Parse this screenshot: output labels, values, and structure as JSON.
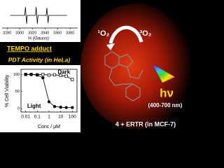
{
  "chart_data": [
    {
      "type": "line",
      "title": "TEMPO adduct",
      "xlabel": "H (Gauss)",
      "color": "#000",
      "x": [
        3285,
        3308,
        3309,
        3311,
        3312,
        3325,
        3326,
        3328,
        3329,
        3342,
        3343,
        3345,
        3346,
        3375
      ],
      "values": [
        0,
        0,
        1,
        -1,
        0,
        0,
        1,
        -1,
        0,
        0,
        0.9,
        -0.9,
        0,
        0
      ],
      "xlim": [
        3272,
        3392
      ],
      "xticks": [
        3280,
        3300,
        3320,
        3340,
        3360,
        3380
      ],
      "ylim": [
        -1.5,
        1.5
      ]
    },
    {
      "type": "scatter",
      "title": "PDT Activity (in HeLa)",
      "xlabel": "Conc / μM",
      "ylabel": "% Cell Viability",
      "log_x": true,
      "xlim": [
        0.004,
        250
      ],
      "xticks": [
        0.01,
        0.1,
        1,
        10,
        100
      ],
      "ylim": [
        -10,
        115
      ],
      "yticks": [
        0,
        50,
        100
      ],
      "series": [
        {
          "name": "Dark",
          "color": "#000",
          "marker": "square",
          "x": [
            0.01,
            0.03,
            0.1,
            0.3,
            1,
            3,
            10,
            30,
            100
          ],
          "values": [
            100,
            100,
            99,
            100,
            98,
            99,
            97,
            95,
            85
          ]
        },
        {
          "name": "Light",
          "color": "#000",
          "marker": "circle",
          "x": [
            0.01,
            0.03,
            0.1,
            0.3,
            1,
            3,
            10,
            30,
            100
          ],
          "values": [
            100,
            100,
            98,
            90,
            20,
            6,
            4,
            3,
            3
          ]
        }
      ]
    }
  ],
  "annotations": {
    "singlet_oxygen": "¹O₂",
    "triplet_oxygen": "³O₂",
    "light": "hν",
    "wavelength": "(400-700 nm)",
    "caption": "4 + ERTR (in MCF-7)"
  }
}
